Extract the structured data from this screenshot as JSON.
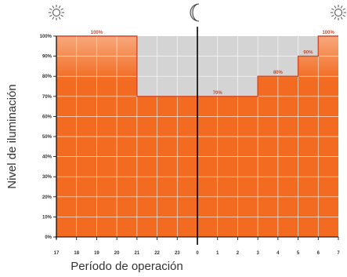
{
  "chart_data": {
    "type": "area",
    "title": "",
    "xlabel": "Período de operación",
    "ylabel": "Nivel de iluminación",
    "x_ticks": [
      "17",
      "18",
      "19",
      "20",
      "21",
      "22",
      "23",
      "0",
      "1",
      "2",
      "3",
      "4",
      "5",
      "6",
      "7"
    ],
    "y_ticks": [
      "0%",
      "10%",
      "20%",
      "30%",
      "40%",
      "50%",
      "60%",
      "70%",
      "80%",
      "90%",
      "100%"
    ],
    "ylim": [
      0,
      100
    ],
    "grid": true,
    "steps": [
      {
        "from": "17",
        "to": "21",
        "value": 100
      },
      {
        "from": "21",
        "to": "3",
        "value": 70
      },
      {
        "from": "3",
        "to": "5",
        "value": 80
      },
      {
        "from": "5",
        "to": "6",
        "value": 90
      },
      {
        "from": "6",
        "to": "7",
        "value": 100
      }
    ],
    "data_labels": [
      {
        "text": "100%",
        "at": "19",
        "value": 100
      },
      {
        "text": "70%",
        "at": "1",
        "value": 70
      },
      {
        "text": "80%",
        "at": "4",
        "value": 80
      },
      {
        "text": "90%",
        "at": "5.5",
        "value": 90
      },
      {
        "text": "100%",
        "at": "6.5",
        "value": 100
      }
    ],
    "divider_at": "0",
    "icons": [
      {
        "name": "sun-icon",
        "at": "17"
      },
      {
        "name": "moon-icon",
        "at": "0"
      },
      {
        "name": "sun-icon",
        "at": "7"
      }
    ],
    "colors": {
      "fill": "#f26b21",
      "fill_top": "#f7a87c",
      "background_band": "#d4d4d4",
      "step_line": "#d24a2a",
      "grid": "#ffffff",
      "divider": "#000000"
    }
  }
}
